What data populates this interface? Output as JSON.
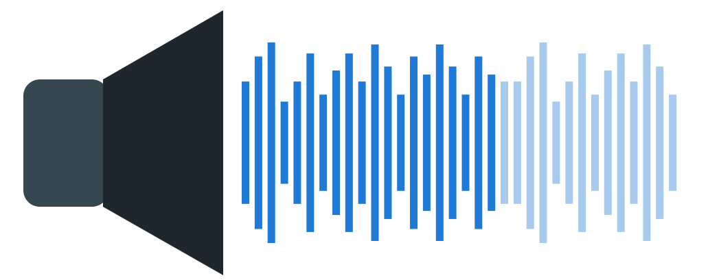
{
  "icon": "speaker-waveform-icon",
  "colors": {
    "background": "#ffffff",
    "speaker_box": "#37474f",
    "speaker_cone": "#1f272e",
    "waveform_active": "#1e7ad6",
    "waveform_inactive": "#a8cbed"
  },
  "waveform": {
    "active_bars": 20,
    "levels": [
      0.61,
      0.86,
      1.0,
      0.41,
      0.61,
      0.89,
      0.48,
      0.72,
      0.89,
      0.61,
      0.98,
      0.76,
      0.48,
      0.86,
      0.68,
      0.98,
      0.76,
      0.48,
      0.86,
      0.68,
      0.61,
      0.61,
      0.86,
      1.0,
      0.41,
      0.61,
      0.89,
      0.48,
      0.72,
      0.89,
      0.61,
      0.98,
      0.76,
      0.48
    ]
  }
}
